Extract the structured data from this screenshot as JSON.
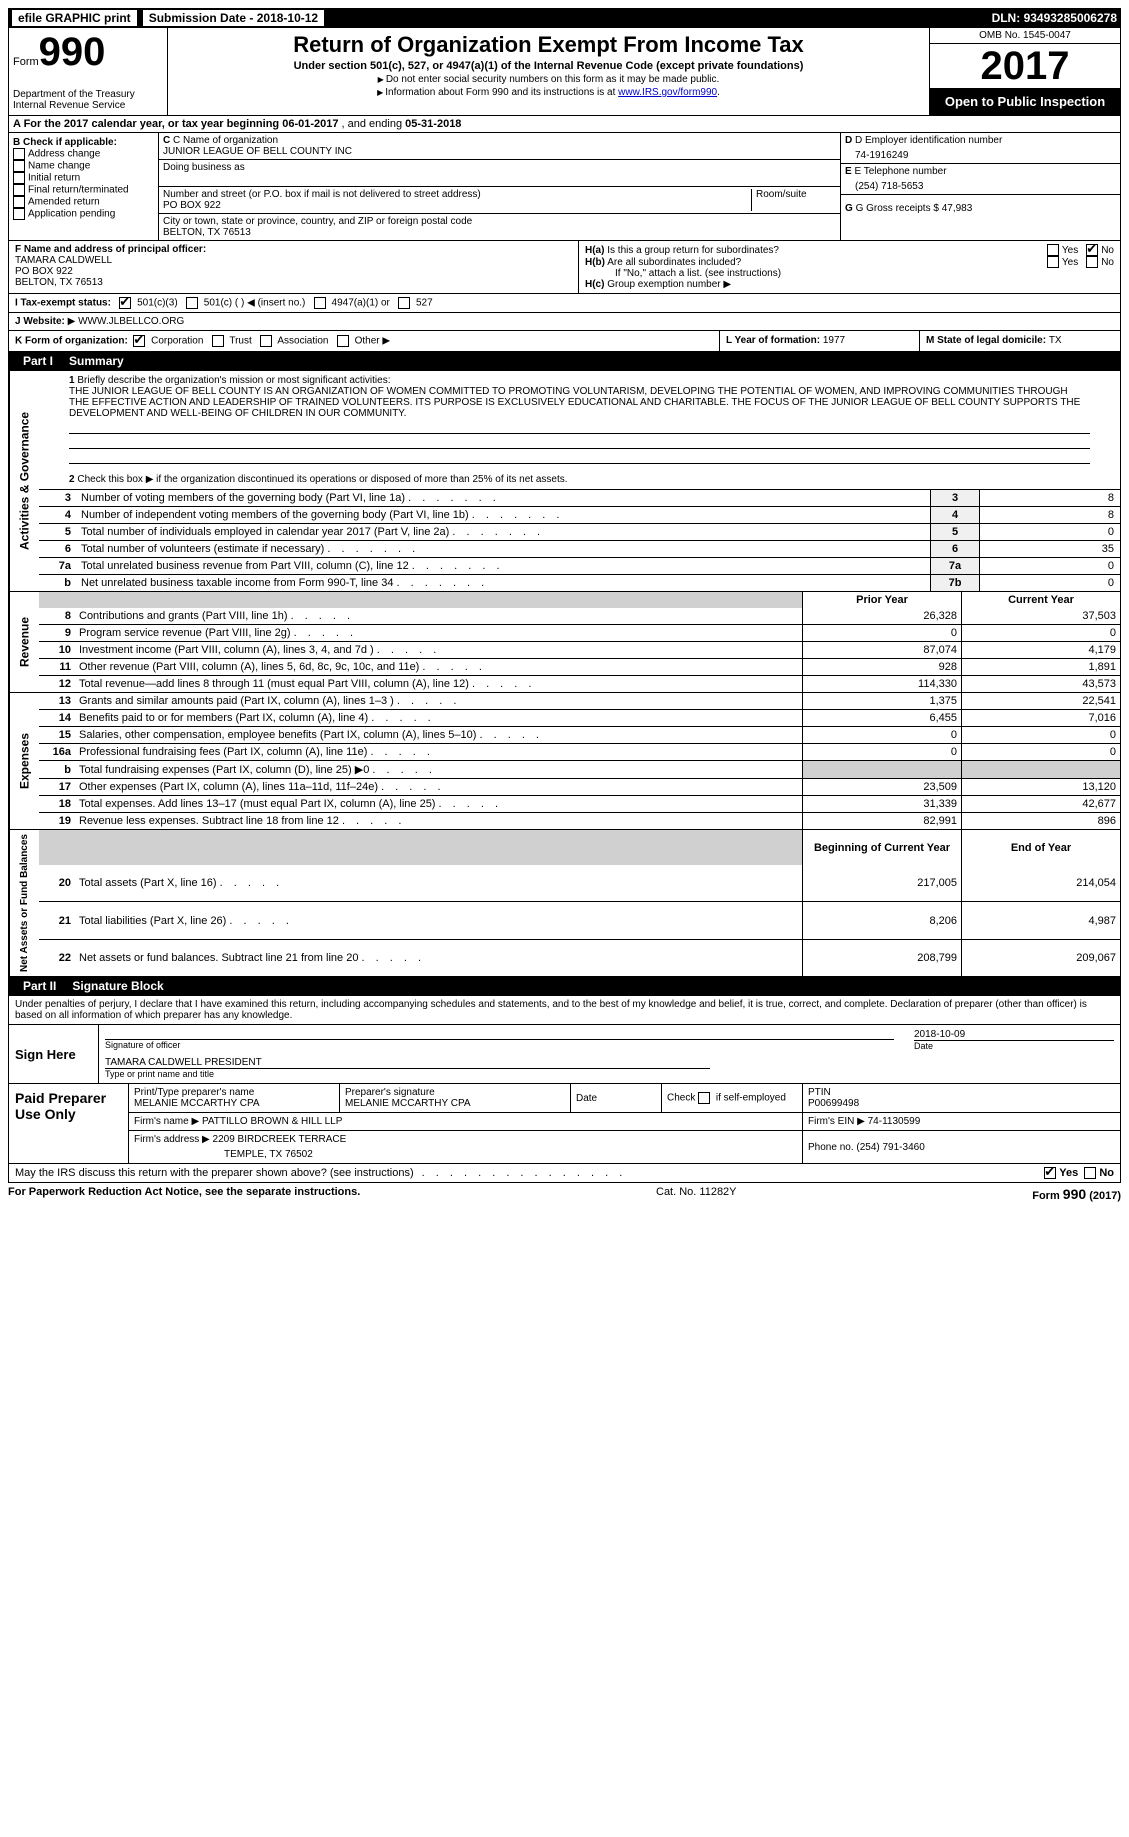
{
  "topbar": {
    "efile": "efile GRAPHIC print",
    "submission_label": "Submission Date - ",
    "submission_date": "2018-10-12",
    "dln_label": "DLN: ",
    "dln": "93493285006278"
  },
  "header": {
    "form_word": "Form",
    "form_num": "990",
    "dept1": "Department of the Treasury",
    "dept2": "Internal Revenue Service",
    "title": "Return of Organization Exempt From Income Tax",
    "subtitle": "Under section 501(c), 527, or 4947(a)(1) of the Internal Revenue Code (except private foundations)",
    "instr1": "Do not enter social security numbers on this form as it may be made public.",
    "instr2_pre": "Information about Form 990 and its instructions is at ",
    "instr2_link": "www.IRS.gov/form990",
    "omb": "OMB No. 1545-0047",
    "year": "2017",
    "open": "Open to Public Inspection"
  },
  "row_a": {
    "label": "A  For the 2017 calendar year, or tax year beginning ",
    "begin": "06-01-2017",
    "mid": "   , and ending ",
    "end": "05-31-2018"
  },
  "box_b": {
    "header": "B Check if applicable:",
    "items": [
      "Address change",
      "Name change",
      "Initial return",
      "Final return/terminated",
      "Amended return",
      "Application pending"
    ]
  },
  "box_c": {
    "name_label": "C Name of organization",
    "name": "JUNIOR LEAGUE OF BELL COUNTY INC",
    "dba_label": "Doing business as",
    "dba": "",
    "street_label": "Number and street (or P.O. box if mail is not delivered to street address)",
    "room_label": "Room/suite",
    "street": "PO BOX 922",
    "city_label": "City or town, state or province, country, and ZIP or foreign postal code",
    "city": "BELTON, TX  76513"
  },
  "box_d": {
    "label": "D Employer identification number",
    "value": "74-1916249"
  },
  "box_e": {
    "label": "E Telephone number",
    "value": "(254) 718-5653"
  },
  "box_g": {
    "label": "G Gross receipts $ ",
    "value": "47,983"
  },
  "box_f": {
    "label": "F  Name and address of principal officer:",
    "name": "TAMARA CALDWELL",
    "street": "PO BOX 922",
    "city": "BELTON, TX  76513"
  },
  "box_h": {
    "ha": "Is this a group return for subordinates?",
    "hb": "Are all subordinates included?",
    "hb_note": "If \"No,\" attach a list. (see instructions)",
    "hc": "Group exemption number"
  },
  "row_i": {
    "label": "I  Tax-exempt status:",
    "o1": "501(c)(3)",
    "o2": "501(c) (  )",
    "o2b": "(insert no.)",
    "o3": "4947(a)(1) or",
    "o4": "527"
  },
  "row_j": {
    "label": "J  Website:",
    "value": "WWW.JLBELLCO.ORG"
  },
  "row_k": {
    "label": "K Form of organization:",
    "o1": "Corporation",
    "o2": "Trust",
    "o3": "Association",
    "o4": "Other"
  },
  "row_l": {
    "label": "L Year of formation: ",
    "value": "1977"
  },
  "row_m": {
    "label": "M State of legal domicile: ",
    "value": "TX"
  },
  "part1": {
    "header_part": "Part I",
    "header_title": "Summary",
    "vlabels": {
      "gov": "Activities & Governance",
      "rev": "Revenue",
      "exp": "Expenses",
      "net": "Net Assets or Fund Balances"
    },
    "l1_label": "Briefly describe the organization's mission or most significant activities:",
    "l1_text": "THE JUNIOR LEAGUE OF BELL COUNTY IS AN ORGANIZATION OF WOMEN COMMITTED TO PROMOTING VOLUNTARISM, DEVELOPING THE POTENTIAL OF WOMEN, AND IMPROVING COMMUNITIES THROUGH THE EFFECTIVE ACTION AND LEADERSHIP OF TRAINED VOLUNTEERS. ITS PURPOSE IS EXCLUSIVELY EDUCATIONAL AND CHARITABLE. THE FOCUS OF THE JUNIOR LEAGUE OF BELL COUNTY SUPPORTS THE DEVELOPMENT AND WELL-BEING OF CHILDREN IN OUR COMMUNITY.",
    "l2": "Check this box ▶      if the organization discontinued its operations or disposed of more than 25% of its net assets.",
    "gov_lines": [
      {
        "n": "3",
        "desc": "Number of voting members of the governing body (Part VI, line 1a)",
        "box": "3",
        "val": "8"
      },
      {
        "n": "4",
        "desc": "Number of independent voting members of the governing body (Part VI, line 1b)",
        "box": "4",
        "val": "8"
      },
      {
        "n": "5",
        "desc": "Total number of individuals employed in calendar year 2017 (Part V, line 2a)",
        "box": "5",
        "val": "0"
      },
      {
        "n": "6",
        "desc": "Total number of volunteers (estimate if necessary)",
        "box": "6",
        "val": "35"
      },
      {
        "n": "7a",
        "desc": "Total unrelated business revenue from Part VIII, column (C), line 12",
        "box": "7a",
        "val": "0"
      },
      {
        "n": "b",
        "desc": "Net unrelated business taxable income from Form 990-T, line 34",
        "box": "7b",
        "val": "0"
      }
    ],
    "col_hdr_prior": "Prior Year",
    "col_hdr_current": "Current Year",
    "rev_lines": [
      {
        "n": "8",
        "desc": "Contributions and grants (Part VIII, line 1h)",
        "py": "26,328",
        "cy": "37,503"
      },
      {
        "n": "9",
        "desc": "Program service revenue (Part VIII, line 2g)",
        "py": "0",
        "cy": "0"
      },
      {
        "n": "10",
        "desc": "Investment income (Part VIII, column (A), lines 3, 4, and 7d )",
        "py": "87,074",
        "cy": "4,179"
      },
      {
        "n": "11",
        "desc": "Other revenue (Part VIII, column (A), lines 5, 6d, 8c, 9c, 10c, and 11e)",
        "py": "928",
        "cy": "1,891"
      },
      {
        "n": "12",
        "desc": "Total revenue—add lines 8 through 11 (must equal Part VIII, column (A), line 12)",
        "py": "114,330",
        "cy": "43,573"
      }
    ],
    "exp_lines": [
      {
        "n": "13",
        "desc": "Grants and similar amounts paid (Part IX, column (A), lines 1–3 )",
        "py": "1,375",
        "cy": "22,541"
      },
      {
        "n": "14",
        "desc": "Benefits paid to or for members (Part IX, column (A), line 4)",
        "py": "6,455",
        "cy": "7,016"
      },
      {
        "n": "15",
        "desc": "Salaries, other compensation, employee benefits (Part IX, column (A), lines 5–10)",
        "py": "0",
        "cy": "0"
      },
      {
        "n": "16a",
        "desc": "Professional fundraising fees (Part IX, column (A), line 11e)",
        "py": "0",
        "cy": "0"
      },
      {
        "n": "b",
        "desc": "Total fundraising expenses (Part IX, column (D), line 25) ▶0",
        "py": "",
        "cy": "",
        "blank": true
      },
      {
        "n": "17",
        "desc": "Other expenses (Part IX, column (A), lines 11a–11d, 11f–24e)",
        "py": "23,509",
        "cy": "13,120"
      },
      {
        "n": "18",
        "desc": "Total expenses. Add lines 13–17 (must equal Part IX, column (A), line 25)",
        "py": "31,339",
        "cy": "42,677"
      },
      {
        "n": "19",
        "desc": "Revenue less expenses. Subtract line 18 from line 12",
        "py": "82,991",
        "cy": "896"
      }
    ],
    "col_hdr_begin": "Beginning of Current Year",
    "col_hdr_end": "End of Year",
    "net_lines": [
      {
        "n": "20",
        "desc": "Total assets (Part X, line 16)",
        "py": "217,005",
        "cy": "214,054"
      },
      {
        "n": "21",
        "desc": "Total liabilities (Part X, line 26)",
        "py": "8,206",
        "cy": "4,987"
      },
      {
        "n": "22",
        "desc": "Net assets or fund balances. Subtract line 21 from line 20",
        "py": "208,799",
        "cy": "209,067"
      }
    ]
  },
  "part2": {
    "header_part": "Part II",
    "header_title": "Signature Block",
    "decl": "Under penalties of perjury, I declare that I have examined this return, including accompanying schedules and statements, and to the best of my knowledge and belief, it is true, correct, and complete. Declaration of preparer (other than officer) is based on all information of which preparer has any knowledge.",
    "sign_here": "Sign Here",
    "sig_officer": "Signature of officer",
    "sig_date_label": "Date",
    "sig_date": "2018-10-09",
    "sig_name": "TAMARA CALDWELL PRESIDENT",
    "sig_name_label": "Type or print name and title",
    "paid_label": "Paid Preparer Use Only",
    "prep_name_label": "Print/Type preparer's name",
    "prep_name": "MELANIE MCCARTHY CPA",
    "prep_sig_label": "Preparer's signature",
    "prep_sig": "MELANIE MCCARTHY CPA",
    "prep_date_label": "Date",
    "prep_check_label": "Check        if self-employed",
    "ptin_label": "PTIN",
    "ptin": "P00699498",
    "firm_name_label": "Firm's name    ▶ ",
    "firm_name": "PATTILLO BROWN & HILL LLP",
    "firm_ein_label": "Firm's EIN ▶ ",
    "firm_ein": "74-1130599",
    "firm_addr_label": "Firm's address ▶ ",
    "firm_addr1": "2209 BIRDCREEK TERRACE",
    "firm_addr2": "TEMPLE, TX  76502",
    "firm_phone_label": "Phone no. ",
    "firm_phone": "(254) 791-3460"
  },
  "discuss": {
    "text": "May the IRS discuss this return with the preparer shown above? (see instructions)",
    "yes": "Yes",
    "no": "No"
  },
  "footer": {
    "pra": "For Paperwork Reduction Act Notice, see the separate instructions.",
    "cat": "Cat. No. 11282Y",
    "form": "Form 990 (2017)"
  },
  "labels": {
    "yes": "Yes",
    "no": "No",
    "hc_arrow": "▶"
  }
}
